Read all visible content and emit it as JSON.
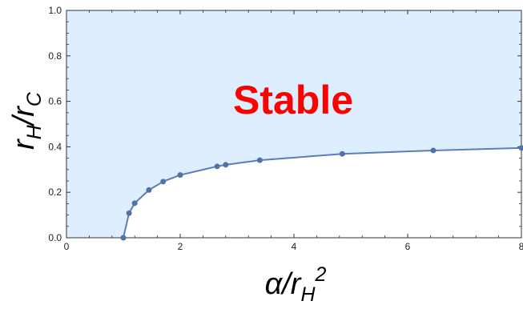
{
  "chart_data": {
    "type": "line",
    "title": "",
    "xlabel": {
      "main": "α/r",
      "sub": "H",
      "sup": "2"
    },
    "ylabel": {
      "main1": "r",
      "sub1": "H",
      "main2": "/r",
      "sub2": "C"
    },
    "xlim": [
      0,
      8
    ],
    "ylim": [
      0,
      1
    ],
    "xticks": [
      0,
      2,
      4,
      6,
      8
    ],
    "yticks": [
      0,
      0.2,
      0.4,
      0.6,
      0.8,
      1
    ],
    "xtick_labels": [
      "0",
      "2",
      "4",
      "6",
      "8"
    ],
    "ytick_labels": [
      "0.0",
      "0.2",
      "0.4",
      "0.6",
      "0.8",
      "1.0"
    ],
    "grid": false,
    "legend": "none",
    "series": [
      {
        "x": [
          1.0,
          1.1,
          1.2,
          1.45,
          1.7,
          2.0,
          2.65,
          2.8,
          3.4,
          4.85,
          6.45,
          8.0
        ],
        "y": [
          0.0,
          0.108,
          0.152,
          0.21,
          0.247,
          0.276,
          0.314,
          0.321,
          0.341,
          0.369,
          0.384,
          0.395
        ]
      }
    ],
    "region": {
      "label": "Stable",
      "fill": "above-curve"
    },
    "annotation": "Stable",
    "colors": {
      "line": "#5a7fb5",
      "marker": "#4f73a8",
      "region_fill": "#ddeeff",
      "annotation": "#ff0000",
      "axis": "#333333"
    }
  }
}
